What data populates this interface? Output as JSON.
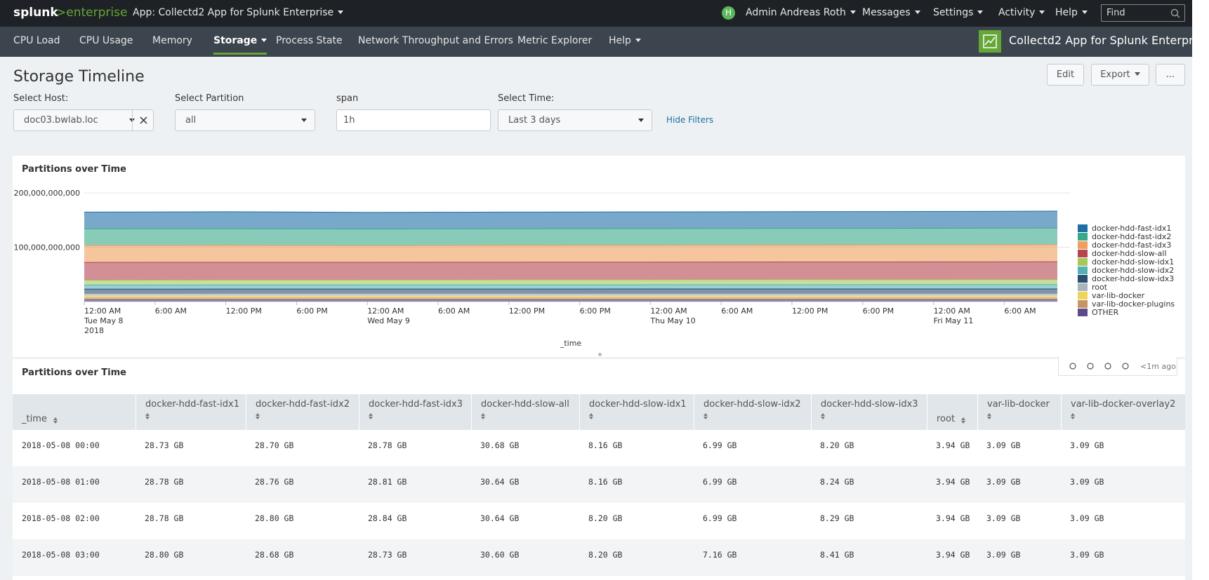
{
  "top_bar": {
    "brand": "splunk",
    "product": ">enterprise",
    "app_menu": "App: Collectd2 App for Splunk Enterprise",
    "user_badge": "H",
    "user": "Admin Andreas Roth",
    "menus": [
      "Messages",
      "Settings",
      "Activity",
      "Help"
    ],
    "search_placeholder": "Find"
  },
  "nav": {
    "items": [
      "CPU Load",
      "CPU Usage",
      "Memory",
      "Storage",
      "Process State",
      "Network Throughput and Errors",
      "Metric Explorer",
      "Help"
    ],
    "app_title": "Collectd2 App for Splunk Enterprise"
  },
  "dashboard": {
    "title": "Storage Timeline",
    "buttons": [
      "Edit",
      "Export",
      "..."
    ],
    "filters": [
      {
        "label": "Select Host:",
        "value": "doc03.bwlab.loc"
      },
      {
        "label": "Select Partition",
        "value": "all"
      },
      {
        "label": "span",
        "value": "1h"
      },
      {
        "label": "Select Time:",
        "value": "Last 3 days"
      }
    ],
    "hide_filters": "Hide Filters"
  },
  "chart_data": {
    "type": "area",
    "stacked": true,
    "title": "Partitions over Time",
    "x_label": "_time",
    "x": [
      "2018-05-08T00:00",
      "2018-05-08T12:00",
      "2018-05-09T00:00",
      "2018-05-09T12:00",
      "2018-05-10T00:00",
      "2018-05-10T12:00",
      "2018-05-11T00:00",
      "2018-05-11T10:30"
    ],
    "series": [
      {
        "name": "docker-hdd-fast-idx1",
        "color": "#1e6fa6",
        "values": [
          30800000000,
          31200000000,
          30600000000,
          30700000000,
          30800000000,
          30900000000,
          31000000000,
          31100000000
        ]
      },
      {
        "name": "docker-hdd-fast-idx2",
        "color": "#3aa98b",
        "values": [
          30800000000,
          30900000000,
          30700000000,
          30800000000,
          30800000000,
          30900000000,
          30900000000,
          31000000000
        ]
      },
      {
        "name": "docker-hdd-fast-idx3",
        "color": "#ef9e5c",
        "values": [
          30900000000,
          30900000000,
          30600000000,
          30700000000,
          30800000000,
          30800000000,
          30900000000,
          31000000000
        ]
      },
      {
        "name": "docker-hdd-slow-all",
        "color": "#b4444e",
        "values": [
          32900000000,
          32800000000,
          32600000000,
          32700000000,
          32700000000,
          32800000000,
          32800000000,
          32900000000
        ]
      },
      {
        "name": "docker-hdd-slow-idx1",
        "color": "#a5c85a",
        "values": [
          8800000000,
          8900000000,
          8900000000,
          9000000000,
          9000000000,
          9100000000,
          9100000000,
          9200000000
        ]
      },
      {
        "name": "docker-hdd-slow-idx2",
        "color": "#55b1b6",
        "values": [
          7500000000,
          7600000000,
          7600000000,
          7700000000,
          7700000000,
          7800000000,
          7800000000,
          7900000000
        ]
      },
      {
        "name": "docker-hdd-slow-idx3",
        "color": "#2b4d70",
        "values": [
          8800000000,
          8900000000,
          9000000000,
          9000000000,
          9100000000,
          9100000000,
          9200000000,
          9200000000
        ]
      },
      {
        "name": "root",
        "color": "#a9b4bc",
        "values": [
          4200000000,
          4200000000,
          4200000000,
          4200000000,
          4200000000,
          4200000000,
          4200000000,
          4200000000
        ]
      },
      {
        "name": "var-lib-docker",
        "color": "#f0d45a",
        "values": [
          3300000000,
          3300000000,
          3300000000,
          3300000000,
          3300000000,
          3300000000,
          3300000000,
          3300000000
        ]
      },
      {
        "name": "var-lib-docker-plugins",
        "color": "#c79565",
        "values": [
          3300000000,
          3300000000,
          3300000000,
          3300000000,
          3300000000,
          3300000000,
          3300000000,
          3300000000
        ]
      },
      {
        "name": "OTHER",
        "color": "#5d4a88",
        "values": [
          3300000000,
          3300000000,
          3300000000,
          3300000000,
          3300000000,
          3300000000,
          3300000000,
          3300000000
        ]
      }
    ],
    "ylim": [
      0,
      200000000000
    ],
    "yticks": [
      {
        "value": 100000000000,
        "label": "100,000,000,000"
      },
      {
        "value": 200000000000,
        "label": "200,000,000,000"
      }
    ],
    "xlim": [
      "2018-05-08T00:00",
      "2018-05-11T10:30"
    ],
    "xticks": [
      {
        "value": "2018-05-08T00:00",
        "label": "12:00 AM\nTue May 8\n2018"
      },
      {
        "value": "2018-05-08T06:00",
        "label": "6:00 AM"
      },
      {
        "value": "2018-05-08T12:00",
        "label": "12:00 PM"
      },
      {
        "value": "2018-05-08T18:00",
        "label": "6:00 PM"
      },
      {
        "value": "2018-05-09T00:00",
        "label": "12:00 AM\nWed May 9"
      },
      {
        "value": "2018-05-09T06:00",
        "label": "6:00 AM"
      },
      {
        "value": "2018-05-09T12:00",
        "label": "12:00 PM"
      },
      {
        "value": "2018-05-09T18:00",
        "label": "6:00 PM"
      },
      {
        "value": "2018-05-10T00:00",
        "label": "12:00 AM\nThu May 10"
      },
      {
        "value": "2018-05-10T06:00",
        "label": "6:00 AM"
      },
      {
        "value": "2018-05-10T12:00",
        "label": "12:00 PM"
      },
      {
        "value": "2018-05-10T18:00",
        "label": "6:00 PM"
      },
      {
        "value": "2018-05-11T00:00",
        "label": "12:00 AM\nFri May 11"
      },
      {
        "value": "2018-05-11T06:00",
        "label": "6:00 AM"
      }
    ],
    "grid": true,
    "legend": "right",
    "opacity": 0.6
  },
  "panel_tools": {
    "age": "<1m ago"
  },
  "table": {
    "title": "Partitions over Time",
    "columns": [
      "_time",
      "docker-hdd-fast-idx1",
      "docker-hdd-fast-idx2",
      "docker-hdd-fast-idx3",
      "docker-hdd-slow-all",
      "docker-hdd-slow-idx1",
      "docker-hdd-slow-idx2",
      "docker-hdd-slow-idx3",
      "root",
      "var-lib-docker",
      "var-lib-docker-overlay2"
    ],
    "rows": [
      [
        "2018-05-08 00:00",
        "28.73 GB",
        "28.70 GB",
        "28.78 GB",
        "30.68 GB",
        "8.16 GB",
        "6.99 GB",
        "8.20 GB",
        "3.94 GB",
        "3.09 GB",
        "3.09 GB"
      ],
      [
        "2018-05-08 01:00",
        "28.78 GB",
        "28.76 GB",
        "28.81 GB",
        "30.64 GB",
        "8.16 GB",
        "6.99 GB",
        "8.24 GB",
        "3.94 GB",
        "3.09 GB",
        "3.09 GB"
      ],
      [
        "2018-05-08 02:00",
        "28.78 GB",
        "28.80 GB",
        "28.84 GB",
        "30.64 GB",
        "8.20 GB",
        "6.99 GB",
        "8.29 GB",
        "3.94 GB",
        "3.09 GB",
        "3.09 GB"
      ],
      [
        "2018-05-08 03:00",
        "28.80 GB",
        "28.68 GB",
        "28.73 GB",
        "30.60 GB",
        "8.20 GB",
        "7.16 GB",
        "8.41 GB",
        "3.94 GB",
        "3.09 GB",
        "3.09 GB"
      ]
    ]
  }
}
